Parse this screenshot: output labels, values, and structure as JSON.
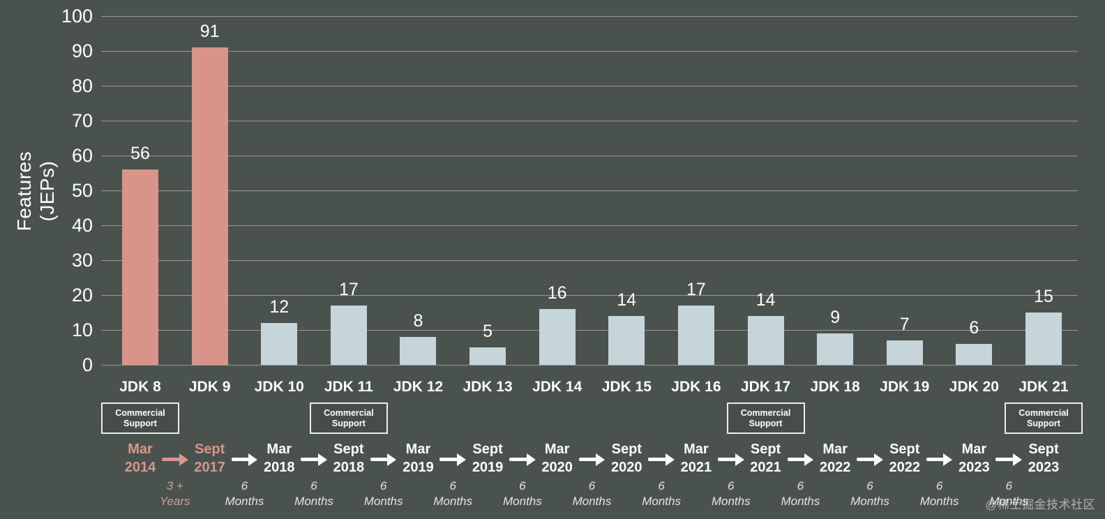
{
  "chart_data": {
    "type": "bar",
    "title": "",
    "ylabel": "Features (JEPs)",
    "ylabel_lines": [
      "Features",
      "(JEPs)"
    ],
    "ylim": [
      0,
      100
    ],
    "ytick_step": 10,
    "categories": [
      "JDK 8",
      "JDK 9",
      "JDK 10",
      "JDK 11",
      "JDK 12",
      "JDK 13",
      "JDK 14",
      "JDK 15",
      "JDK 16",
      "JDK 17",
      "JDK 18",
      "JDK 19",
      "JDK 20",
      "JDK 21"
    ],
    "values": [
      56,
      91,
      12,
      17,
      8,
      5,
      16,
      14,
      17,
      14,
      9,
      7,
      6,
      15
    ],
    "highlight_count": 2,
    "grid": true,
    "legend": "none",
    "colors": {
      "background": "#4a524e",
      "highlight_bar": "#d9948a",
      "bar": "#c6d5d9",
      "grid": "rgba(255,255,255,0.42)",
      "text": "#ffffff",
      "highlight_text": "#d8968c"
    }
  },
  "commercial_support": {
    "line1": "Commercial",
    "line2": "Support",
    "indices": [
      0,
      3,
      9,
      13
    ]
  },
  "timeline": {
    "releases": [
      {
        "month": "Mar",
        "year": "2014",
        "highlight": true
      },
      {
        "month": "Sept",
        "year": "2017",
        "highlight": true
      },
      {
        "month": "Mar",
        "year": "2018",
        "highlight": false
      },
      {
        "month": "Sept",
        "year": "2018",
        "highlight": false
      },
      {
        "month": "Mar",
        "year": "2019",
        "highlight": false
      },
      {
        "month": "Sept",
        "year": "2019",
        "highlight": false
      },
      {
        "month": "Mar",
        "year": "2020",
        "highlight": false
      },
      {
        "month": "Sept",
        "year": "2020",
        "highlight": false
      },
      {
        "month": "Mar",
        "year": "2021",
        "highlight": false
      },
      {
        "month": "Sept",
        "year": "2021",
        "highlight": false
      },
      {
        "month": "Mar",
        "year": "2022",
        "highlight": false
      },
      {
        "month": "Sept",
        "year": "2022",
        "highlight": false
      },
      {
        "month": "Mar",
        "year": "2023",
        "highlight": false
      },
      {
        "month": "Sept",
        "year": "2023",
        "highlight": false
      }
    ],
    "intervals": [
      {
        "line1": "3 +",
        "line2": "Years",
        "highlight": true
      },
      {
        "line1": "6",
        "line2": "Months",
        "highlight": false
      },
      {
        "line1": "6",
        "line2": "Months",
        "highlight": false
      },
      {
        "line1": "6",
        "line2": "Months",
        "highlight": false
      },
      {
        "line1": "6",
        "line2": "Months",
        "highlight": false
      },
      {
        "line1": "6",
        "line2": "Months",
        "highlight": false
      },
      {
        "line1": "6",
        "line2": "Months",
        "highlight": false
      },
      {
        "line1": "6",
        "line2": "Months",
        "highlight": false
      },
      {
        "line1": "6",
        "line2": "Months",
        "highlight": false
      },
      {
        "line1": "6",
        "line2": "Months",
        "highlight": false
      },
      {
        "line1": "6",
        "line2": "Months",
        "highlight": false
      },
      {
        "line1": "6",
        "line2": "Months",
        "highlight": false
      },
      {
        "line1": "6",
        "line2": "Months",
        "highlight": false
      }
    ]
  },
  "watermark": "@稀土掘金技术社区"
}
